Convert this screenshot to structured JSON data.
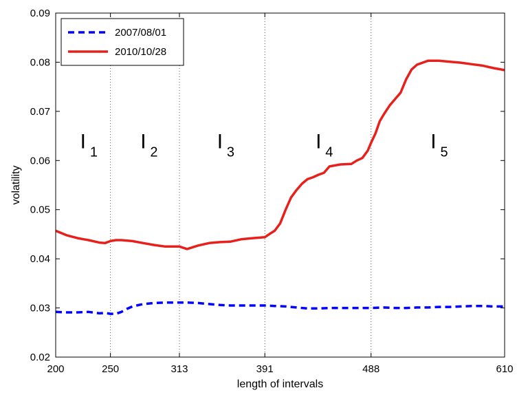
{
  "chart_data": {
    "type": "line",
    "title": "",
    "xlabel": "length of intervals",
    "ylabel": "volatility",
    "xlim": [
      200,
      610
    ],
    "ylim": [
      0.02,
      0.09
    ],
    "x_ticks": [
      200,
      250,
      313,
      391,
      488,
      610
    ],
    "y_ticks": [
      0.02,
      0.03,
      0.04,
      0.05,
      0.06,
      0.07,
      0.08,
      0.09
    ],
    "y_tick_labels": [
      "0.02",
      "0.03",
      "0.04",
      "0.05",
      "0.06",
      "0.07",
      "0.08",
      "0.09"
    ],
    "vertical_lines": [
      250,
      313,
      391,
      488
    ],
    "legend_position": "top-left",
    "grid": false,
    "region_labels": [
      {
        "main": "I",
        "sub": "1",
        "x": 225,
        "y": 0.0625
      },
      {
        "main": "I",
        "sub": "2",
        "x": 280,
        "y": 0.0625
      },
      {
        "main": "I",
        "sub": "3",
        "x": 350,
        "y": 0.0625
      },
      {
        "main": "I",
        "sub": "4",
        "x": 440,
        "y": 0.0625
      },
      {
        "main": "I",
        "sub": "5",
        "x": 545,
        "y": 0.0625
      }
    ],
    "series": [
      {
        "name": "2007/08/01",
        "color": "#0000ff",
        "style": "dashed",
        "x": [
          200,
          210,
          220,
          230,
          240,
          245,
          250,
          255,
          260,
          265,
          270,
          280,
          290,
          300,
          313,
          320,
          330,
          340,
          350,
          360,
          370,
          380,
          391,
          400,
          410,
          420,
          430,
          440,
          450,
          460,
          470,
          480,
          488,
          500,
          510,
          520,
          530,
          540,
          550,
          560,
          570,
          580,
          590,
          600,
          610
        ],
        "y": [
          0.0292,
          0.0291,
          0.0291,
          0.0292,
          0.0289,
          0.029,
          0.0288,
          0.0288,
          0.0292,
          0.0298,
          0.0303,
          0.0308,
          0.031,
          0.0311,
          0.0311,
          0.0311,
          0.031,
          0.0308,
          0.0306,
          0.0305,
          0.0305,
          0.0305,
          0.0305,
          0.0304,
          0.0303,
          0.0301,
          0.0299,
          0.0299,
          0.03,
          0.03,
          0.03,
          0.03,
          0.03,
          0.0301,
          0.03,
          0.03,
          0.0301,
          0.0301,
          0.0302,
          0.0302,
          0.0303,
          0.0304,
          0.0304,
          0.0303,
          0.0303
        ]
      },
      {
        "name": "2010/10/28",
        "color": "#e8201c",
        "style": "solid",
        "x": [
          200,
          210,
          220,
          230,
          240,
          245,
          250,
          255,
          260,
          270,
          280,
          290,
          300,
          313,
          320,
          330,
          340,
          350,
          360,
          370,
          380,
          391,
          395,
          400,
          405,
          410,
          415,
          420,
          425,
          430,
          435,
          440,
          445,
          450,
          460,
          470,
          475,
          480,
          485,
          488,
          492,
          496,
          500,
          505,
          510,
          515,
          520,
          525,
          530,
          540,
          550,
          560,
          570,
          580,
          590,
          600,
          610
        ],
        "y": [
          0.0457,
          0.0448,
          0.0442,
          0.0438,
          0.0433,
          0.0432,
          0.0436,
          0.0438,
          0.0438,
          0.0436,
          0.0432,
          0.0428,
          0.0425,
          0.0425,
          0.042,
          0.0427,
          0.0432,
          0.0434,
          0.0435,
          0.044,
          0.0442,
          0.0444,
          0.045,
          0.0457,
          0.0472,
          0.05,
          0.0525,
          0.054,
          0.0553,
          0.0562,
          0.0566,
          0.0571,
          0.0575,
          0.0588,
          0.0592,
          0.0593,
          0.06,
          0.0605,
          0.062,
          0.0636,
          0.0655,
          0.068,
          0.0695,
          0.0712,
          0.0725,
          0.0738,
          0.0765,
          0.0785,
          0.0795,
          0.0803,
          0.0803,
          0.0801,
          0.0799,
          0.0796,
          0.0793,
          0.0788,
          0.0784
        ]
      }
    ]
  }
}
